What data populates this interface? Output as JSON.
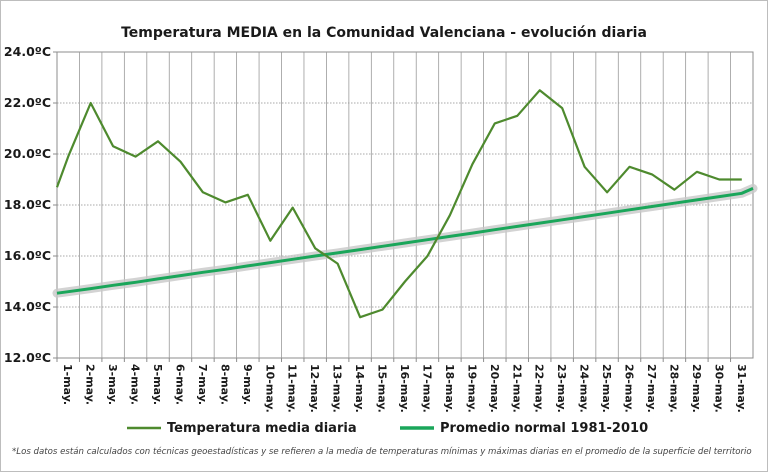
{
  "chart_data": {
    "type": "line",
    "title": "Temperatura  MEDIA  en la Comunidad  Valenciana - evolución diaria",
    "xlabel": "",
    "ylabel": "",
    "categories": [
      "1-may.",
      "2-may.",
      "3-may.",
      "4-may.",
      "5-may.",
      "6-may.",
      "7-may.",
      "8-may.",
      "9-may.",
      "10-may.",
      "11-may.",
      "12-may.",
      "13-may.",
      "14-may.",
      "15-may.",
      "16-may.",
      "17-may.",
      "18-may.",
      "19-may.",
      "20-may.",
      "21-may.",
      "22-may.",
      "23-may.",
      "24-may.",
      "25-may.",
      "26-may.",
      "27-may.",
      "28-may.",
      "29-may.",
      "30-may.",
      "31-may."
    ],
    "ylim": [
      12,
      24
    ],
    "yticks": [
      12,
      14,
      16,
      18,
      20,
      22,
      24
    ],
    "ytick_labels": [
      "12.0ºC",
      "14.0ºC",
      "16.0ºC",
      "18.0ºC",
      "20.0ºC",
      "22.0ºC",
      "24.0ºC"
    ],
    "grid": true,
    "legend_position": "bottom",
    "series": [
      {
        "name": "Temperatura media diaria",
        "color": "#4e8a2e",
        "values": [
          19.9,
          22.0,
          20.3,
          19.9,
          20.5,
          19.7,
          18.5,
          18.1,
          18.4,
          16.6,
          17.9,
          16.3,
          15.7,
          13.6,
          13.9,
          15.0,
          16.0,
          17.6,
          19.6,
          21.2,
          21.5,
          22.5,
          21.8,
          19.5,
          18.5,
          19.5,
          19.2,
          18.6,
          19.3,
          19.0,
          19.0
        ],
        "start_value": 18.7
      },
      {
        "name": "Promedio normal 1981-2010",
        "color": "#1aa65a",
        "values": [
          14.6,
          14.72,
          14.85,
          14.97,
          15.1,
          15.23,
          15.36,
          15.48,
          15.61,
          15.74,
          15.87,
          16.0,
          16.12,
          16.25,
          16.38,
          16.51,
          16.64,
          16.77,
          16.9,
          17.03,
          17.16,
          17.29,
          17.42,
          17.55,
          17.68,
          17.81,
          17.94,
          18.07,
          18.2,
          18.33,
          18.46
        ],
        "end_value": 18.65
      }
    ],
    "footnote": "*Los datos están calculados  con técnicas geoestadísticas y se refieren a la media de temperaturas mínimas y máximas diarias en el promedio de la superficie del territorio"
  }
}
